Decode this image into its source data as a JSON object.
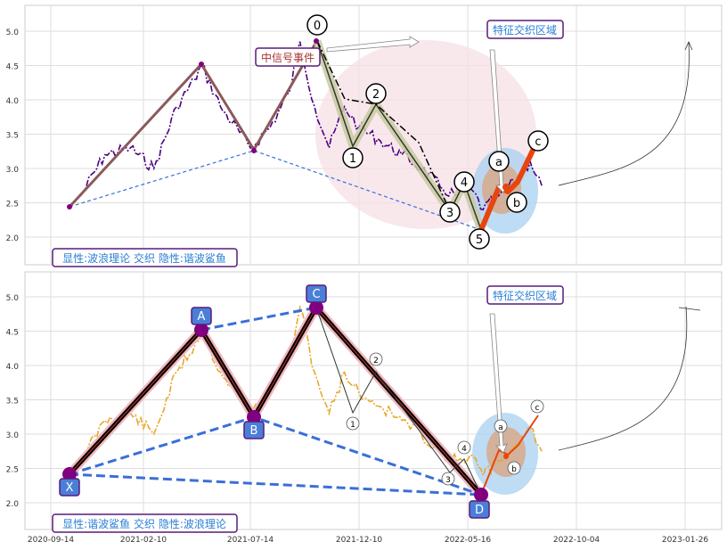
{
  "chart_data": [
    {
      "type": "line",
      "panel": "top",
      "yticks": [
        2.0,
        2.5,
        3.0,
        3.5,
        4.0,
        4.5,
        5.0
      ],
      "ylim": [
        1.6,
        5.4
      ],
      "annotation_box": "显性:波浪理论 交织 隐性:谐波鲨鱼",
      "zone_label": "特征交织区域",
      "event_label": "中信号事件",
      "wave_labels": [
        "0",
        "1",
        "2",
        "3",
        "4",
        "5",
        "a",
        "b",
        "c"
      ],
      "series": [
        {
          "values_key": "price",
          "x": [
            "2020-11-01",
            "2020-12-10",
            "2021-01-20",
            "2021-02-25",
            "2021-03-30",
            "2021-04-25",
            "2021-05-05",
            "2021-06-01",
            "2021-07-14",
            "2021-08-10",
            "2021-09-05",
            "2021-09-20",
            "2021-10-10",
            "2021-10-30",
            "2021-11-20",
            "2021-12-10",
            "2022-01-10",
            "2022-02-10",
            "2022-03-10",
            "2022-04-10",
            "2022-05-01",
            "2022-05-20",
            "2022-06-05",
            "2022-06-25",
            "2022-07-15",
            "2022-08-05",
            "2022-08-20"
          ],
          "values": [
            2.6,
            3.2,
            3.3,
            3.0,
            3.9,
            4.3,
            4.5,
            3.9,
            3.3,
            3.6,
            4.1,
            4.85,
            3.9,
            3.3,
            3.9,
            3.6,
            3.4,
            3.2,
            3.0,
            2.7,
            2.6,
            2.7,
            2.4,
            2.6,
            2.8,
            3.1,
            2.75
          ]
        }
      ]
    },
    {
      "type": "line",
      "panel": "bottom",
      "yticks": [
        2.0,
        2.5,
        3.0,
        3.5,
        4.0,
        4.5,
        5.0
      ],
      "ylim": [
        1.6,
        5.4
      ],
      "xtick_labels": [
        "2020-09-14",
        "2021-02-10",
        "2021-07-14",
        "2021-12-10",
        "2022-05-16",
        "2022-10-04",
        "2023-01-26"
      ],
      "annotation_box": "显性:谐波鲨鱼 交织 隐性:波浪理论",
      "zone_label": "特征交织区域",
      "point_labels": [
        "X",
        "A",
        "B",
        "C",
        "D"
      ],
      "wave_labels": [
        "1",
        "2",
        "3",
        "4",
        "a",
        "b",
        "c"
      ],
      "series": [
        {
          "values_key": "price",
          "x": [
            "2020-11-01",
            "2020-12-10",
            "2021-01-20",
            "2021-02-25",
            "2021-03-30",
            "2021-04-25",
            "2021-05-05",
            "2021-06-01",
            "2021-07-14",
            "2021-08-10",
            "2021-09-05",
            "2021-09-20",
            "2021-10-10",
            "2021-10-30",
            "2021-11-20",
            "2021-12-10",
            "2022-01-10",
            "2022-02-10",
            "2022-03-10",
            "2022-04-10",
            "2022-05-01",
            "2022-05-20",
            "2022-06-05",
            "2022-06-25",
            "2022-07-15",
            "2022-08-05",
            "2022-08-20"
          ],
          "values": [
            2.6,
            3.2,
            3.3,
            3.0,
            3.9,
            4.3,
            4.5,
            3.9,
            3.3,
            3.6,
            4.1,
            4.85,
            3.9,
            3.3,
            3.9,
            3.6,
            3.4,
            3.2,
            3.0,
            2.7,
            2.6,
            2.7,
            2.4,
            2.6,
            2.8,
            3.1,
            2.75
          ]
        }
      ]
    }
  ],
  "colors": {
    "top_price": "#4b0082",
    "bottom_price": "#e8a82c",
    "trend_brown": "#8b5a5a",
    "dashed_blue": "#3a6fd8",
    "orange_red": "#e8450e",
    "label_blue": "#2a7fd4",
    "event_red": "#a83232",
    "box_border": "#5a1a7a",
    "marker_purple": "#800080",
    "zone_blue": "#a8d0f0",
    "zone_pink": "#f6e0e6",
    "node_blue": "#4a7fd8"
  }
}
